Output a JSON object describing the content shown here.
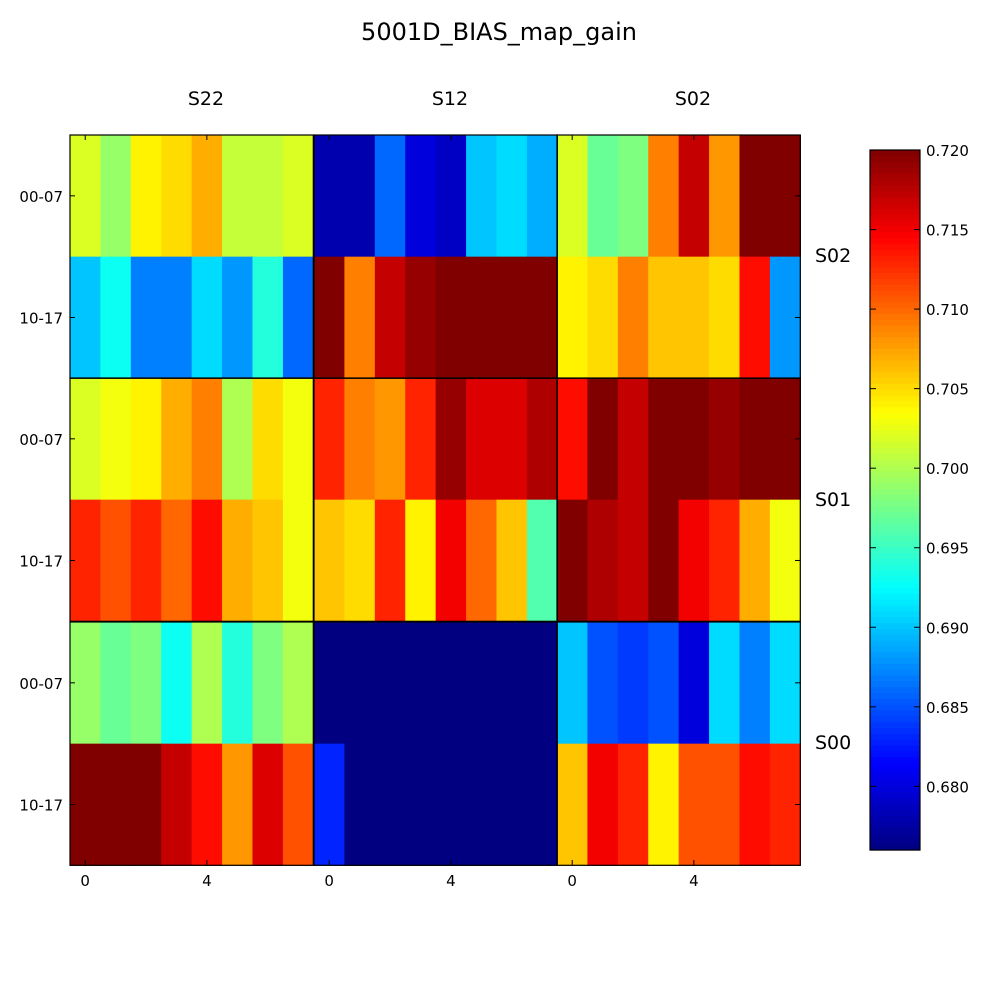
{
  "chart_data": {
    "type": "heatmap",
    "title": "5001D_BIAS_map_gain",
    "column_labels": [
      "S22",
      "S12",
      "S02"
    ],
    "row_labels": [
      "S02",
      "S01",
      "S00"
    ],
    "ytick_labels": [
      "00-07",
      "10-17"
    ],
    "xtick_labels": [
      "0",
      "4"
    ],
    "xtick_values": [
      0,
      4
    ],
    "colorbar": {
      "min": 0.676,
      "max": 0.72,
      "ticks": [
        0.68,
        0.685,
        0.69,
        0.695,
        0.7,
        0.705,
        0.71,
        0.715,
        0.72
      ],
      "tick_labels": [
        "0.680",
        "0.685",
        "0.690",
        "0.695",
        "0.700",
        "0.705",
        "0.710",
        "0.715",
        "0.720"
      ],
      "colormap": "jet"
    },
    "panels": [
      {
        "row": "S02",
        "col": "S22",
        "values": [
          [
            0.702,
            0.699,
            0.704,
            0.705,
            0.707,
            0.701,
            0.701,
            0.702
          ],
          [
            0.69,
            0.693,
            0.687,
            0.687,
            0.691,
            0.688,
            0.694,
            0.686
          ]
        ]
      },
      {
        "row": "S02",
        "col": "S12",
        "values": [
          [
            0.678,
            0.678,
            0.686,
            0.68,
            0.679,
            0.69,
            0.691,
            0.689
          ],
          [
            0.72,
            0.709,
            0.717,
            0.719,
            0.72,
            0.72,
            0.72,
            0.72
          ]
        ]
      },
      {
        "row": "S02",
        "col": "S02",
        "values": [
          [
            0.702,
            0.697,
            0.698,
            0.709,
            0.717,
            0.708,
            0.72,
            0.72
          ],
          [
            0.704,
            0.705,
            0.709,
            0.706,
            0.706,
            0.705,
            0.714,
            0.688
          ]
        ]
      },
      {
        "row": "S01",
        "col": "S22",
        "values": [
          [
            0.702,
            0.703,
            0.704,
            0.707,
            0.709,
            0.7,
            0.705,
            0.703
          ],
          [
            0.713,
            0.711,
            0.713,
            0.71,
            0.714,
            0.707,
            0.706,
            0.703
          ]
        ]
      },
      {
        "row": "S01",
        "col": "S12",
        "values": [
          [
            0.713,
            0.709,
            0.708,
            0.713,
            0.719,
            0.716,
            0.716,
            0.718
          ],
          [
            0.706,
            0.705,
            0.713,
            0.704,
            0.715,
            0.71,
            0.706,
            0.696
          ]
        ]
      },
      {
        "row": "S01",
        "col": "S02",
        "values": [
          [
            0.714,
            0.72,
            0.717,
            0.72,
            0.72,
            0.719,
            0.72,
            0.72
          ],
          [
            0.72,
            0.718,
            0.717,
            0.72,
            0.715,
            0.713,
            0.707,
            0.703
          ]
        ]
      },
      {
        "row": "S00",
        "col": "S22",
        "values": [
          [
            0.699,
            0.697,
            0.698,
            0.693,
            0.7,
            0.694,
            0.698,
            0.7
          ],
          [
            0.72,
            0.72,
            0.72,
            0.717,
            0.714,
            0.708,
            0.716,
            0.711
          ]
        ]
      },
      {
        "row": "S00",
        "col": "S12",
        "values": [
          [
            0.676,
            0.676,
            0.676,
            0.676,
            0.676,
            0.676,
            0.676,
            0.676
          ],
          [
            0.683,
            0.676,
            0.676,
            0.676,
            0.676,
            0.676,
            0.676,
            0.676
          ]
        ]
      },
      {
        "row": "S00",
        "col": "S02",
        "values": [
          [
            0.69,
            0.685,
            0.684,
            0.685,
            0.68,
            0.691,
            0.687,
            0.691
          ],
          [
            0.706,
            0.715,
            0.713,
            0.704,
            0.711,
            0.711,
            0.714,
            0.713
          ]
        ]
      }
    ]
  }
}
